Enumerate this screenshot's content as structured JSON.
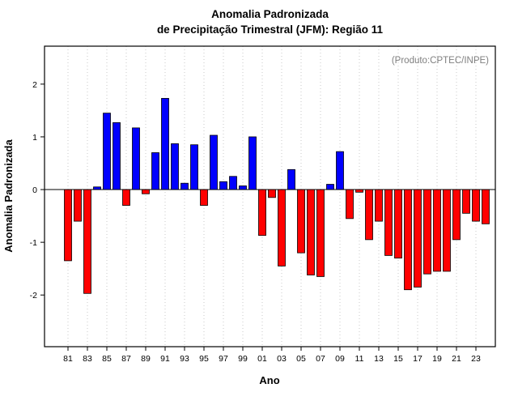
{
  "title": {
    "line1": "Anomalia Padronizada",
    "line2": "de Precipitação Trimestral (JFM): Região 11"
  },
  "annotation": "(Produto:CPTEC/INPE)",
  "axes": {
    "xlabel": "Ano",
    "ylabel": "Anomalia Padronizada"
  },
  "colors": {
    "positive": "#0000ff",
    "negative": "#ff0000",
    "bar_stroke": "#000000",
    "grid": "#c8c8c8",
    "axis": "#000000",
    "annotation": "#7f7f7f"
  },
  "chart_data": {
    "type": "bar",
    "title": "Anomalia Padronizada de Precipitação Trimestral (JFM): Região 11",
    "xlabel": "Ano",
    "ylabel": "Anomalia Padronizada",
    "years": [
      1981,
      1982,
      1983,
      1984,
      1985,
      1986,
      1987,
      1988,
      1989,
      1990,
      1991,
      1992,
      1993,
      1994,
      1995,
      1996,
      1997,
      1998,
      1999,
      2000,
      2001,
      2002,
      2003,
      2004,
      2005,
      2006,
      2007,
      2008,
      2009,
      2010,
      2011,
      2012,
      2013,
      2014,
      2015,
      2016,
      2017,
      2018,
      2019,
      2020,
      2021,
      2022,
      2023,
      2024
    ],
    "values": [
      -1.35,
      -0.6,
      -1.97,
      0.05,
      1.45,
      1.27,
      -0.3,
      1.17,
      -0.08,
      0.7,
      1.73,
      0.87,
      0.12,
      0.85,
      -0.3,
      1.03,
      0.15,
      0.25,
      0.07,
      1.0,
      -0.87,
      -0.15,
      -1.45,
      0.38,
      -1.2,
      -1.62,
      -1.65,
      0.1,
      0.72,
      -0.55,
      -0.05,
      -0.95,
      -0.6,
      -1.25,
      -1.3,
      -1.9,
      -1.85,
      -1.6,
      -1.55,
      -1.55,
      -0.95,
      -0.45,
      -0.6,
      -0.65
    ],
    "x_tick_labels": [
      "81",
      "83",
      "85",
      "87",
      "89",
      "91",
      "93",
      "95",
      "97",
      "99",
      "01",
      "03",
      "05",
      "07",
      "09",
      "11",
      "13",
      "15",
      "17",
      "19",
      "21",
      "23"
    ],
    "y_ticks": [
      -2,
      -1,
      0,
      1,
      2
    ],
    "y_tick_labels": [
      "-2",
      "-1",
      "0",
      "1",
      "2"
    ],
    "ylim": [
      -2.98,
      2.72
    ],
    "grid": "dotted-vertical",
    "legend": "none",
    "color_rule": "blue = positive anomaly, red = negative anomaly"
  }
}
